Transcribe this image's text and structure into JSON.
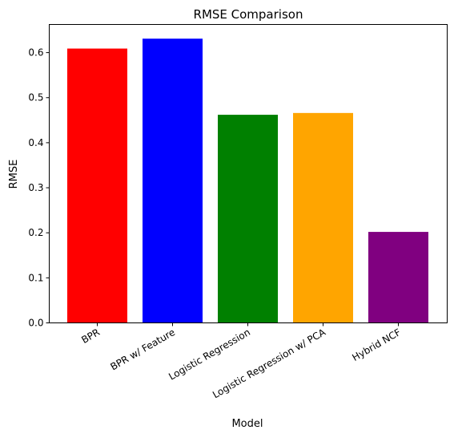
{
  "chart_data": {
    "type": "bar",
    "title": "RMSE Comparison",
    "xlabel": "Model",
    "ylabel": "RMSE",
    "categories": [
      "BPR",
      "BPR w/ Feature",
      "Logistic Regression",
      "Logistic Regression w/ PCA",
      "Hybrid NCF"
    ],
    "values": [
      0.609,
      0.631,
      0.462,
      0.466,
      0.202
    ],
    "colors": [
      "#ff0000",
      "#0000ff",
      "#008000",
      "#ffa500",
      "#800080"
    ],
    "ylim": [
      0,
      0.6625
    ],
    "yticks": [
      0.0,
      0.1,
      0.2,
      0.3,
      0.4,
      0.5,
      0.6
    ],
    "ytick_labels": [
      "0.0",
      "0.1",
      "0.2",
      "0.3",
      "0.4",
      "0.5",
      "0.6"
    ],
    "grid": false,
    "legend": false
  }
}
